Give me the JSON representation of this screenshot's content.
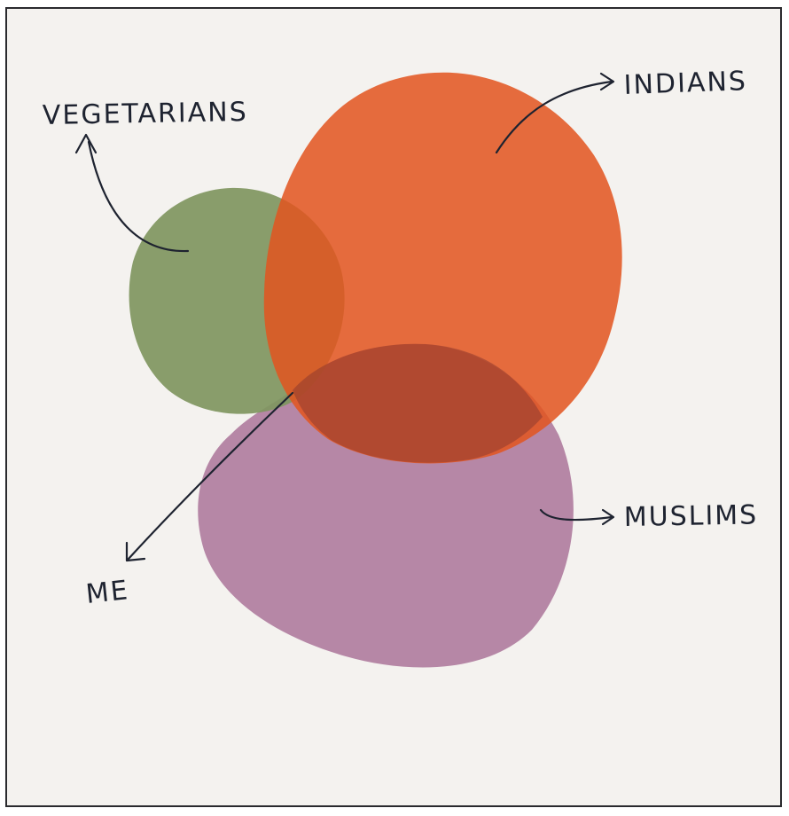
{
  "diagram": {
    "sets": [
      {
        "name": "vegetarians",
        "label": "VEGETARIANS",
        "color": "#7f9660"
      },
      {
        "name": "indians",
        "label": "INDIANS",
        "color": "#e2551f"
      },
      {
        "name": "muslims",
        "label": "MUSLIMS",
        "color": "#b07e9f"
      }
    ],
    "pointer": {
      "label": "ME"
    },
    "colors": {
      "background": "#f4f2ef",
      "frame": "#2a2a2e",
      "ink": "#1e2330"
    }
  }
}
